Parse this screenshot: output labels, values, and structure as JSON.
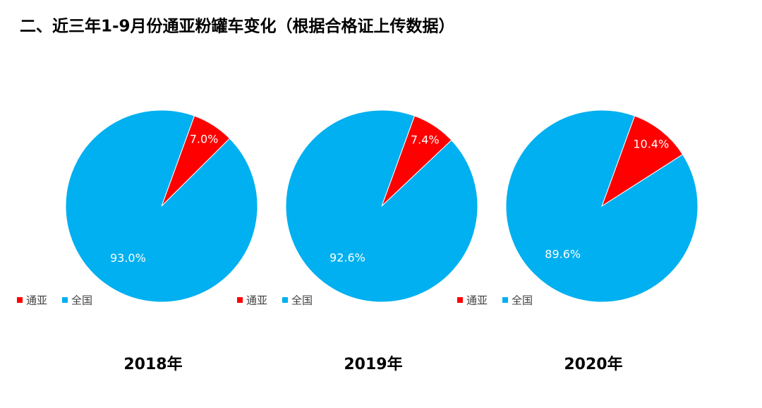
{
  "title": "二、近三年1-9月份通亚粉罐车变化（根据合格证上传数据）",
  "chart_data": [
    {
      "type": "pie",
      "title": "2018年",
      "categories": [
        "通亚",
        "全国"
      ],
      "values": [
        7.0,
        93.0
      ],
      "value_labels": [
        "7.0%",
        "93.0%"
      ],
      "colors": [
        "#ff0000",
        "#00b0f0"
      ]
    },
    {
      "type": "pie",
      "title": "2019年",
      "categories": [
        "通亚",
        "全国"
      ],
      "values": [
        7.4,
        92.6
      ],
      "value_labels": [
        "7.4%",
        "92.6%"
      ],
      "colors": [
        "#ff0000",
        "#00b0f0"
      ]
    },
    {
      "type": "pie",
      "title": "2020年",
      "categories": [
        "通亚",
        "全国"
      ],
      "values": [
        10.4,
        89.6
      ],
      "value_labels": [
        "10.4%",
        "89.6%"
      ],
      "colors": [
        "#ff0000",
        "#00b0f0"
      ]
    }
  ]
}
